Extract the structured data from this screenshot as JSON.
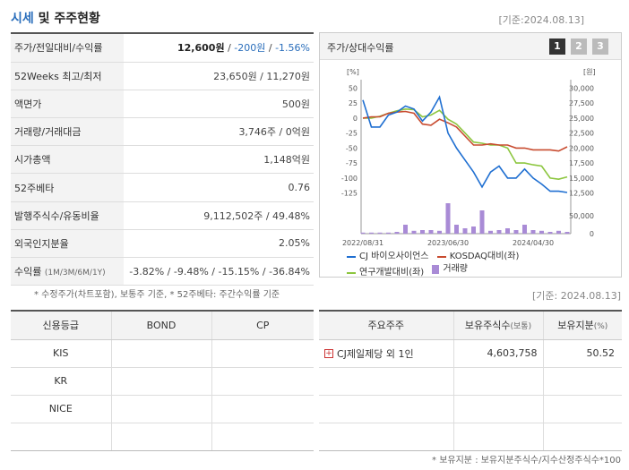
{
  "header": {
    "title_a": "시세",
    "title_b": " 및 주주현황",
    "date": "[기준:2024.08.13]"
  },
  "info": {
    "rows": [
      {
        "key": "주가/전일대비/수익률",
        "price": "12,600원",
        "sep1": " / ",
        "change": "-200원",
        "sep2": " / ",
        "rate": "-1.56%"
      },
      {
        "key": "52Weeks 최고/최저",
        "value": "23,650원 / 11,270원"
      },
      {
        "key": "액면가",
        "value": "500원"
      },
      {
        "key": "거래량/거래대금",
        "value": "3,746주 / 0억원"
      },
      {
        "key": "시가총액",
        "value": "1,148억원"
      },
      {
        "key": "52주베타",
        "value": "0.76"
      },
      {
        "key": "발행주식수/유동비율",
        "value": "9,112,502주 / 49.48%"
      },
      {
        "key": "외국인지분율",
        "value": "2.05%"
      },
      {
        "key": "수익률",
        "key_sub": "(1M/3M/6M/1Y)",
        "value": "-3.82% / -9.48% / -15.15% / -36.84%"
      }
    ]
  },
  "note": "* 수정주가(차트포함), 보통주 기준, * 52주베타: 주간수익률 기준",
  "chart": {
    "title": "주가/상대수익률",
    "pages": [
      "1",
      "2",
      "3"
    ],
    "left_unit": "[%]",
    "right_unit": "[원]",
    "left_ticks": [
      "50",
      "25",
      "0",
      "-25",
      "-50",
      "-75",
      "-100",
      "-125"
    ],
    "right_ticks": [
      "30,000",
      "27,500",
      "25,000",
      "22,500",
      "20,000",
      "17,500",
      "15,000",
      "12,500"
    ],
    "vol_ticks": [
      "50,000",
      "0"
    ],
    "x_labels": [
      "2022/08/31",
      "2023/06/30",
      "2024/04/30"
    ],
    "legend": [
      {
        "label": "CJ 바이오사이언스",
        "color": "#1f6fd1"
      },
      {
        "label": "KOSDAQ대비(좌)",
        "color": "#c84b2f"
      },
      {
        "label": "연구개발대비(좌)",
        "color": "#8cc63f"
      },
      {
        "label": "거래량",
        "color": "#a98bd6"
      }
    ],
    "colors": {
      "main": "#1f6fd1",
      "kosdaq": "#c84b2f",
      "rnd": "#8cc63f",
      "volume": "#a98bd6"
    }
  },
  "chart_data": {
    "type": "line",
    "x": [
      "2022/08/31",
      "2022/09",
      "2022/10",
      "2022/11",
      "2022/12",
      "2023/01",
      "2023/02",
      "2023/03",
      "2023/04",
      "2023/05",
      "2023/06/30",
      "2023/07",
      "2023/08",
      "2023/09",
      "2023/10",
      "2023/11",
      "2023/12",
      "2024/01",
      "2024/02",
      "2024/03",
      "2024/04/30",
      "2024/05",
      "2024/06",
      "2024/07",
      "2024/08"
    ],
    "series": [
      {
        "name": "CJ 바이오사이언스",
        "axis": "right",
        "values": [
          28000,
          23500,
          23500,
          25500,
          26000,
          27000,
          26500,
          24500,
          26000,
          28500,
          22500,
          20000,
          18000,
          16000,
          13500,
          16000,
          17000,
          15000,
          15000,
          16500,
          15000,
          14000,
          12800,
          12800,
          12600
        ]
      },
      {
        "name": "KOSDAQ대비(좌)",
        "axis": "left",
        "values": [
          0,
          2,
          2,
          8,
          10,
          11,
          8,
          -10,
          -12,
          -2,
          -8,
          -15,
          -30,
          -45,
          -45,
          -43,
          -45,
          -45,
          -50,
          -50,
          -53,
          -53,
          -53,
          -55,
          -48
        ]
      },
      {
        "name": "연구개발대비(좌)",
        "axis": "left",
        "values": [
          0,
          0,
          3,
          8,
          12,
          15,
          14,
          2,
          5,
          13,
          -2,
          -10,
          -25,
          -40,
          -42,
          -45,
          -45,
          -50,
          -75,
          -75,
          -78,
          -80,
          -100,
          -102,
          -98
        ]
      },
      {
        "name": "거래량",
        "axis": "volume",
        "values": [
          3000,
          3000,
          3000,
          3000,
          5000,
          25000,
          8000,
          10000,
          10000,
          8000,
          85000,
          25000,
          15000,
          20000,
          65000,
          8000,
          10000,
          15000,
          10000,
          25000,
          10000,
          8000,
          5000,
          8000,
          5000
        ]
      }
    ],
    "ylim_left": [
      -130,
      55
    ],
    "ylim_right": [
      12000,
      30500
    ],
    "ylim_volume": [
      0,
      55000
    ]
  },
  "std_date2": "[기준: 2024.08.13]",
  "credit": {
    "headers": [
      "신용등급",
      "BOND",
      "CP"
    ],
    "rows": [
      [
        "KIS",
        "",
        ""
      ],
      [
        "KR",
        "",
        ""
      ],
      [
        "NICE",
        "",
        ""
      ],
      [
        "",
        "",
        ""
      ]
    ]
  },
  "holders": {
    "headers": [
      "주요주주",
      "보유주식수",
      "보유지분"
    ],
    "header_units": [
      "",
      "(보통)",
      "(%)"
    ],
    "rows": [
      {
        "name": "CJ제일제당 외 1인",
        "shares": "4,603,758",
        "pct": "50.52"
      },
      {
        "name": "",
        "shares": "",
        "pct": ""
      },
      {
        "name": "",
        "shares": "",
        "pct": ""
      },
      {
        "name": "",
        "shares": "",
        "pct": ""
      }
    ]
  },
  "note2": "* 보유지분 : 보유지분주식수/지수산정주식수*100"
}
